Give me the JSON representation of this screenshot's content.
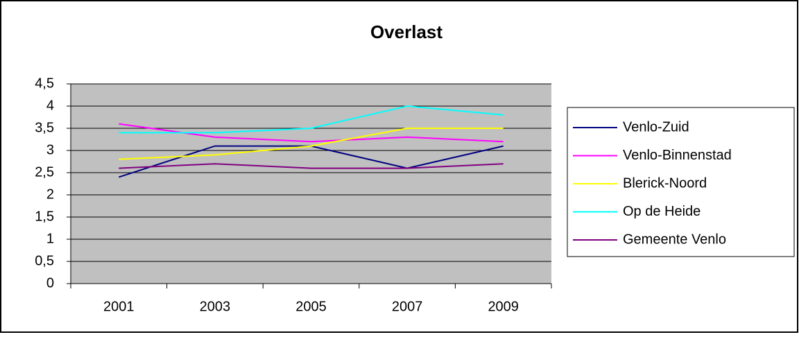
{
  "chart_data": {
    "type": "line",
    "title": "Overlast",
    "categories": [
      "2001",
      "2003",
      "2005",
      "2007",
      "2009"
    ],
    "series": [
      {
        "name": "Venlo-Zuid",
        "color": "#000080",
        "values": [
          2.4,
          3.1,
          3.1,
          2.6,
          3.1
        ]
      },
      {
        "name": "Venlo-Binnenstad",
        "color": "#ff00ff",
        "values": [
          3.6,
          3.3,
          3.2,
          3.3,
          3.2
        ]
      },
      {
        "name": "Blerick-Noord",
        "color": "#ffff00",
        "values": [
          2.8,
          2.9,
          3.1,
          3.5,
          3.5
        ]
      },
      {
        "name": "Op de Heide",
        "color": "#00ffff",
        "values": [
          3.4,
          3.4,
          3.5,
          4.0,
          3.8
        ]
      },
      {
        "name": "Gemeente Venlo",
        "color": "#800080",
        "values": [
          2.6,
          2.7,
          2.6,
          2.6,
          2.7
        ]
      }
    ],
    "ylim": [
      0,
      4.5
    ],
    "yticks": [
      0,
      {
        "value": 0.5,
        "label": "0,5"
      },
      1,
      {
        "value": 1.5,
        "label": "1,5"
      },
      2,
      {
        "value": 2.5,
        "label": "2,5"
      },
      3,
      {
        "value": 3.5,
        "label": "3,5"
      },
      4,
      {
        "value": 4.5,
        "label": "4,5"
      }
    ],
    "grid": true,
    "legend": "right",
    "plot_background": "#c0c0c0"
  }
}
